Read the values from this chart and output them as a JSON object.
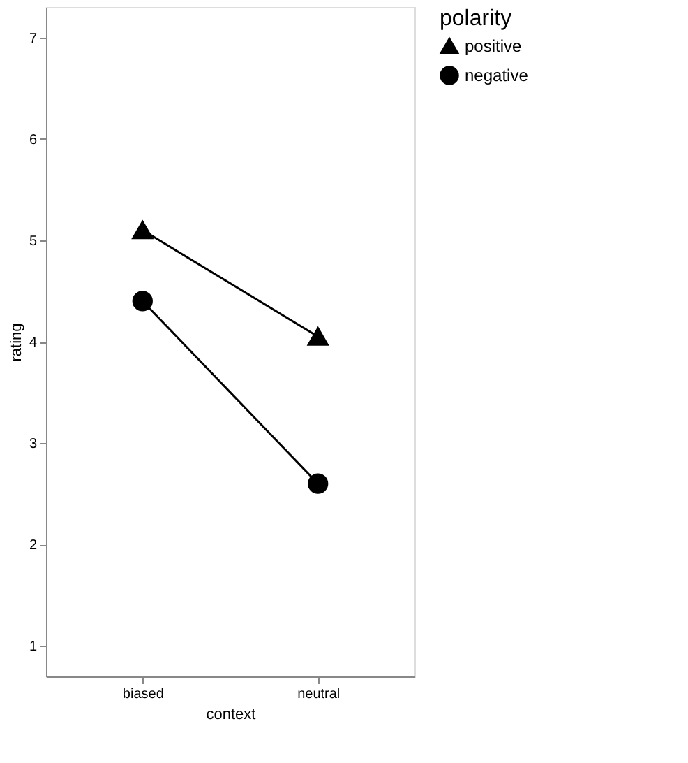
{
  "chart_data": {
    "type": "line",
    "xlabel": "context",
    "ylabel": "rating",
    "legend_title": "polarity",
    "legend": "right",
    "grid": false,
    "categories": [
      "biased",
      "neutral"
    ],
    "series": [
      {
        "name": "positive",
        "color": "#000000",
        "marker": "triangle",
        "values": [
          5.1,
          4.05
        ]
      },
      {
        "name": "negative",
        "color": "#000000",
        "marker": "circle",
        "values": [
          4.4,
          2.6
        ]
      }
    ],
    "ylim": [
      0.7,
      7.3
    ],
    "yticks": [
      1,
      2,
      3,
      4,
      5,
      6,
      7
    ]
  }
}
